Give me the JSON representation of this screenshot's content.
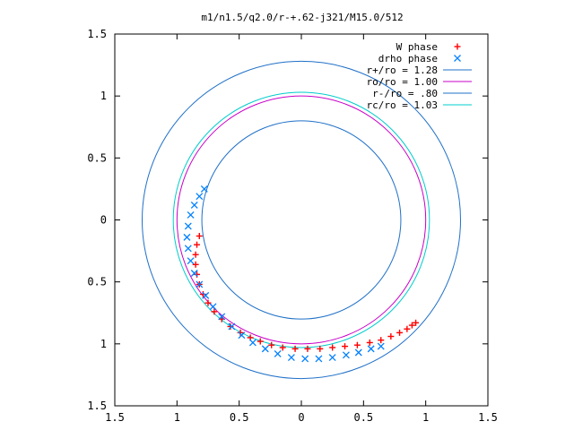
{
  "chart_data": {
    "type": "scatter",
    "title": "m1/n1.5/q2.0/r-+.62-j321/M15.0/512",
    "xlim": [
      -1.5,
      1.5
    ],
    "ylim": [
      -1.5,
      1.5
    ],
    "x_ticks": [
      -1.5,
      -1,
      -0.5,
      0,
      0.5,
      1,
      1.5
    ],
    "y_ticks": [
      -1.5,
      -1,
      -0.5,
      0,
      0.5,
      1,
      1.5
    ],
    "x_tick_labels": [
      "1.5",
      "1",
      "0.5",
      "0",
      "0.5",
      "1",
      "1.5"
    ],
    "y_tick_labels": [
      "1.5",
      "1",
      "0.5",
      "0",
      "0.5",
      "1",
      "1.5"
    ],
    "grid": false,
    "legend_position": "top-right",
    "legend": [
      {
        "label": "W phase",
        "color": "#ff0000",
        "marker": "plus"
      },
      {
        "label": "drho phase",
        "color": "#0080ff",
        "marker": "cross"
      },
      {
        "label": "r+/ro = 1.28",
        "color": "#1f70c8",
        "marker": "line"
      },
      {
        "label": "ro/ro = 1.00",
        "color": "#c800c8",
        "marker": "line"
      },
      {
        "label": "r-/ro = .80",
        "color": "#1f70c8",
        "marker": "line"
      },
      {
        "label": "rc/ro = 1.03",
        "color": "#00cccc",
        "marker": "line"
      }
    ],
    "circles": [
      {
        "name": "r+/ro",
        "r": 1.28,
        "color": "#1f70c8"
      },
      {
        "name": "ro/ro",
        "r": 1.0,
        "color": "#c800c8"
      },
      {
        "name": "r-/ro",
        "r": 0.8,
        "color": "#1f70c8"
      },
      {
        "name": "rc/ro",
        "r": 1.03,
        "color": "#00cccc"
      }
    ],
    "series": [
      {
        "name": "W phase",
        "color": "#ff0000",
        "marker": "plus",
        "x": [
          -0.82,
          -0.84,
          -0.85,
          -0.85,
          -0.84,
          -0.82,
          -0.79,
          -0.75,
          -0.7,
          -0.64,
          -0.57,
          -0.49,
          -0.41,
          -0.33,
          -0.24,
          -0.15,
          -0.05,
          0.05,
          0.15,
          0.25,
          0.35,
          0.45,
          0.55,
          0.64,
          0.72,
          0.79,
          0.85,
          0.89,
          0.92
        ],
        "y": [
          -0.13,
          -0.2,
          -0.28,
          -0.36,
          -0.44,
          -0.52,
          -0.6,
          -0.67,
          -0.74,
          -0.8,
          -0.86,
          -0.91,
          -0.95,
          -0.98,
          -1.01,
          -1.03,
          -1.04,
          -1.04,
          -1.04,
          -1.03,
          -1.02,
          -1.01,
          -0.99,
          -0.97,
          -0.94,
          -0.91,
          -0.88,
          -0.85,
          -0.83
        ]
      },
      {
        "name": "drho phase",
        "color": "#0080ff",
        "marker": "cross",
        "x": [
          -0.78,
          -0.82,
          -0.86,
          -0.89,
          -0.91,
          -0.92,
          -0.91,
          -0.89,
          -0.86,
          -0.82,
          -0.77,
          -0.71,
          -0.64,
          -0.56,
          -0.48,
          -0.39,
          -0.29,
          -0.19,
          -0.08,
          0.03,
          0.14,
          0.25,
          0.36,
          0.46,
          0.56,
          0.64
        ],
        "y": [
          0.25,
          0.19,
          0.12,
          0.04,
          -0.05,
          -0.14,
          -0.23,
          -0.33,
          -0.43,
          -0.52,
          -0.61,
          -0.7,
          -0.78,
          -0.86,
          -0.93,
          -0.99,
          -1.04,
          -1.08,
          -1.11,
          -1.12,
          -1.12,
          -1.11,
          -1.09,
          -1.07,
          -1.04,
          -1.02
        ]
      }
    ]
  }
}
